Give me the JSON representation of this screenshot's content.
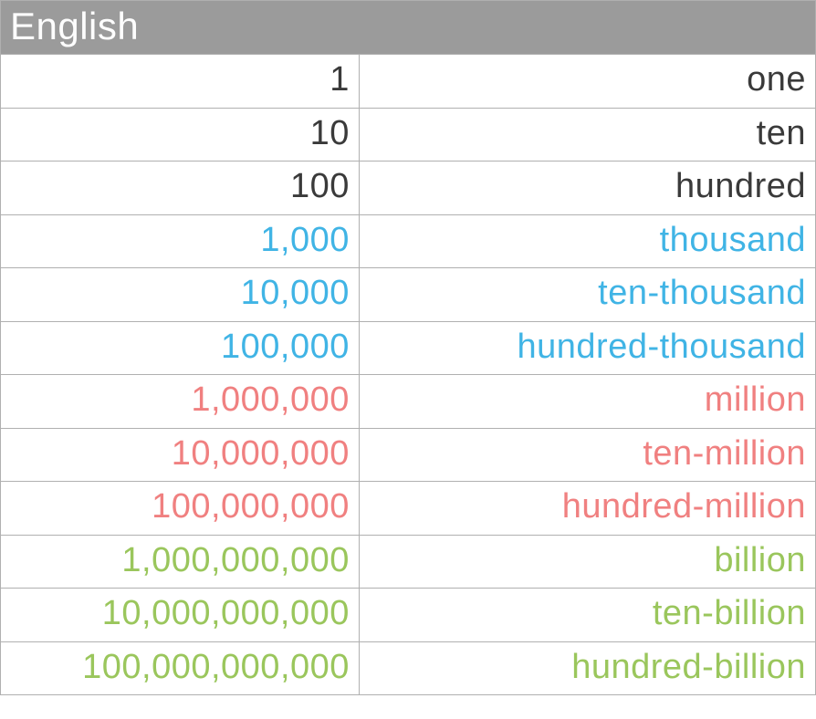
{
  "table": {
    "type": "table",
    "header": "English",
    "columns": [
      "number",
      "word"
    ],
    "column_widths_pct": [
      44,
      56
    ],
    "border_color": "#b0b0b0",
    "background_color": "#ffffff",
    "font_family": "Avenir Next / Helvetica Neue",
    "font_weight": 300,
    "cell_fontsize_pt": 28,
    "header_style": {
      "background_color": "#9b9b9b",
      "text_color": "#fdfdfd",
      "fontsize_pt": 32,
      "align": "left"
    },
    "group_colors": {
      "ones": "#3a3a3a",
      "thousands": "#40b4e5",
      "millions": "#f08080",
      "billions": "#9ac65c"
    },
    "rows": [
      {
        "number": "1",
        "word": "one",
        "color": "#3a3a3a"
      },
      {
        "number": "10",
        "word": "ten",
        "color": "#3a3a3a"
      },
      {
        "number": "100",
        "word": "hundred",
        "color": "#3a3a3a"
      },
      {
        "number": "1,000",
        "word": "thousand",
        "color": "#40b4e5"
      },
      {
        "number": "10,000",
        "word": "ten-thousand",
        "color": "#40b4e5"
      },
      {
        "number": "100,000",
        "word": "hundred-thousand",
        "color": "#40b4e5"
      },
      {
        "number": "1,000,000",
        "word": "million",
        "color": "#f08080"
      },
      {
        "number": "10,000,000",
        "word": "ten-million",
        "color": "#f08080"
      },
      {
        "number": "100,000,000",
        "word": "hundred-million",
        "color": "#f08080"
      },
      {
        "number": "1,000,000,000",
        "word": "billion",
        "color": "#9ac65c"
      },
      {
        "number": "10,000,000,000",
        "word": "ten-billion",
        "color": "#9ac65c"
      },
      {
        "number": "100,000,000,000",
        "word": "hundred-billion",
        "color": "#9ac65c"
      }
    ]
  }
}
